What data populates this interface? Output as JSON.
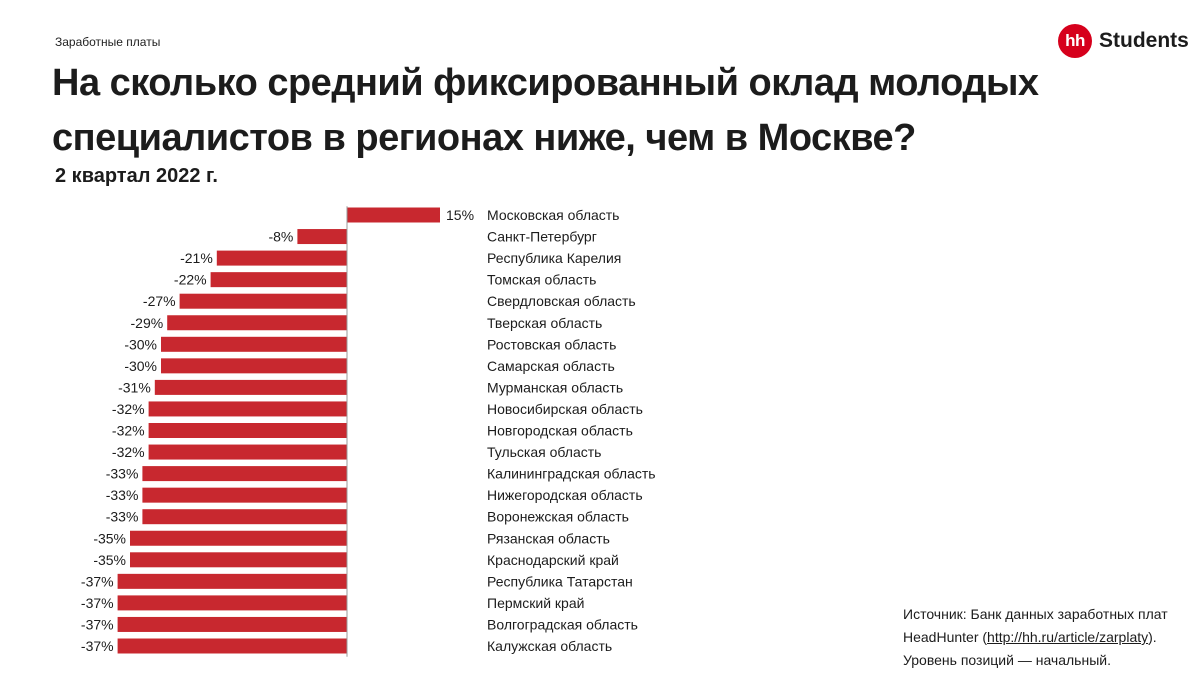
{
  "header": {
    "category": "Заработные платы",
    "title": "На сколько средний фиксированный оклад молодых специалистов в регионах ниже, чем в Москве?",
    "subtitle": "2 квартал 2022 г."
  },
  "logo": {
    "mark": "hh",
    "text": "Students"
  },
  "footer": {
    "line1": "Источник: Банк данных заработных плат",
    "line2_prefix": "HeadHunter (",
    "line2_link": "http://hh.ru/article/zarplaty",
    "line2_suffix": ").",
    "line3": "Уровень позиций — начальный."
  },
  "colors": {
    "bar": "#c8282f",
    "brand": "#d6001c",
    "axis": "#999999"
  },
  "chart_data": {
    "type": "bar",
    "orientation": "horizontal",
    "value_suffix": "%",
    "xlim": [
      -37,
      15
    ],
    "categories": [
      "Московская область",
      "Санкт-Петербург",
      "Республика Карелия",
      "Томская область",
      "Свердловская область",
      "Тверская область",
      "Ростовская область",
      "Самарская область",
      "Мурманская область",
      "Новосибирская область",
      "Новгородская область",
      "Тульская область",
      "Калининградская область",
      "Нижегородская область",
      "Воронежская область",
      "Рязанская область",
      "Краснодарский край",
      "Республика Татарстан",
      "Пермский край",
      "Волгоградская область",
      "Калужская область"
    ],
    "values": [
      15,
      -8,
      -21,
      -22,
      -27,
      -29,
      -30,
      -30,
      -31,
      -32,
      -32,
      -32,
      -33,
      -33,
      -33,
      -35,
      -35,
      -37,
      -37,
      -37,
      -37
    ],
    "labels": [
      "15%",
      "-8%",
      "-21%",
      "-22%",
      "-27%",
      "-29%",
      "-30%",
      "-30%",
      "-31%",
      "-32%",
      "-32%",
      "-32%",
      "-33%",
      "-33%",
      "-33%",
      "-35%",
      "-35%",
      "-37%",
      "-37%",
      "-37%",
      "-37%"
    ]
  }
}
